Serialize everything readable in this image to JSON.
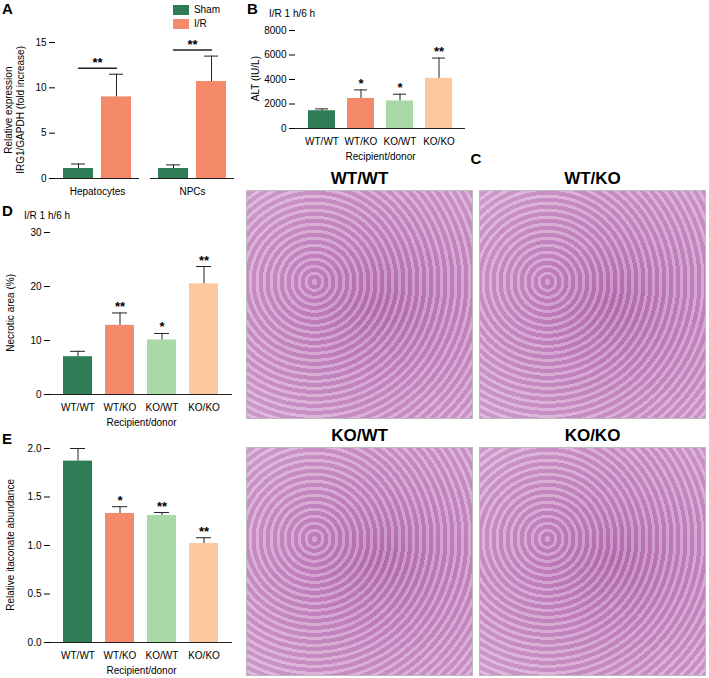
{
  "chart_data": [
    {
      "panel": "A",
      "type": "bar",
      "ylabel": "Relative expression\nIRG1/GAPDH (fold increase)",
      "categories": [
        "Hepatocytes",
        "NPCs"
      ],
      "series": [
        {
          "name": "Sham",
          "color": "#2e7d57",
          "values": [
            1.1,
            1.1
          ],
          "errors": [
            0.5,
            0.4
          ]
        },
        {
          "name": "I/R",
          "color": "#f48a6a",
          "values": [
            9.0,
            10.7
          ],
          "errors": [
            2.5,
            2.8
          ]
        }
      ],
      "annotations": [
        "**",
        "**"
      ],
      "ylim": [
        0,
        15
      ],
      "yticks": [
        0,
        5,
        10,
        15
      ],
      "legend": "top right"
    },
    {
      "panel": "B",
      "type": "bar",
      "title": "I/R 1 h/6 h",
      "ylabel": "ALT (IU/L)",
      "xlabel": "Recipient/donor",
      "categories": [
        "WT/WT",
        "WT/KO",
        "KO/WT",
        "KO/KO"
      ],
      "values": [
        1450,
        2450,
        2250,
        4100
      ],
      "errors": [
        150,
        700,
        550,
        1650
      ],
      "colors": [
        "#2e7d57",
        "#f48a6a",
        "#a9d9a6",
        "#fcc8a0"
      ],
      "annotations": [
        null,
        "*",
        "*",
        "**"
      ],
      "ylim": [
        0,
        8000
      ],
      "yticks": [
        0,
        2000,
        4000,
        6000,
        8000
      ]
    },
    {
      "panel": "C",
      "type": "image",
      "labels": [
        "WT/WT",
        "WT/KO",
        "KO/WT",
        "KO/KO"
      ]
    },
    {
      "panel": "D",
      "type": "bar",
      "title": "I/R 1 h/6 h",
      "ylabel": "Necrotic area (%)",
      "xlabel": "Recipient/donor",
      "categories": [
        "WT/WT",
        "WT/KO",
        "KO/WT",
        "KO/KO"
      ],
      "values": [
        7.0,
        12.8,
        10.1,
        20.5
      ],
      "errors": [
        1.0,
        2.3,
        1.2,
        3.2
      ],
      "colors": [
        "#2e7d57",
        "#f48a6a",
        "#a9d9a6",
        "#fcc8a0"
      ],
      "annotations": [
        null,
        "**",
        "*",
        "**"
      ],
      "ylim": [
        0,
        30
      ],
      "yticks": [
        0,
        10,
        20,
        30
      ]
    },
    {
      "panel": "E",
      "type": "bar",
      "ylabel": "Relative itaconate abundance",
      "xlabel": "Recipient/donor",
      "categories": [
        "WT/WT",
        "WT/KO",
        "KO/WT",
        "KO/KO"
      ],
      "values": [
        1.87,
        1.33,
        1.31,
        1.02
      ],
      "errors": [
        0.13,
        0.07,
        0.03,
        0.06
      ],
      "colors": [
        "#2e7d57",
        "#f48a6a",
        "#a9d9a6",
        "#fcc8a0"
      ],
      "annotations": [
        null,
        "*",
        "**",
        "**"
      ],
      "ylim": [
        0,
        2.0
      ],
      "yticks": [
        {
          "value": 0,
          "label": "0.0"
        },
        {
          "value": 0.5,
          "label": "0.5"
        },
        {
          "value": 1.0,
          "label": "1.0"
        },
        {
          "value": 1.5,
          "label": "1.5"
        },
        {
          "value": 2.0,
          "label": "2.0"
        }
      ]
    }
  ]
}
